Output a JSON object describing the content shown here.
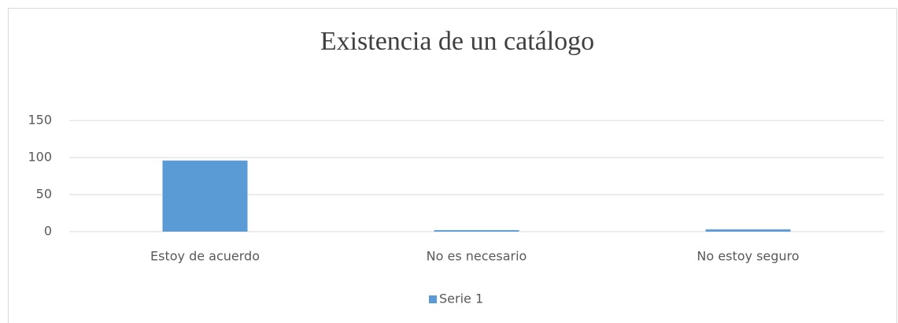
{
  "chart_data": {
    "type": "bar",
    "title": "Existencia de un catálogo",
    "categories": [
      "Estoy de acuerdo",
      "No es necesario",
      "No estoy seguro"
    ],
    "series": [
      {
        "name": "Serie 1",
        "color": "#5b9bd5",
        "values": [
          96,
          2,
          3
        ]
      }
    ],
    "ylim": [
      0,
      150
    ],
    "yticks": [
      0,
      50,
      100,
      150
    ],
    "grid": true,
    "legend": "bottom"
  }
}
